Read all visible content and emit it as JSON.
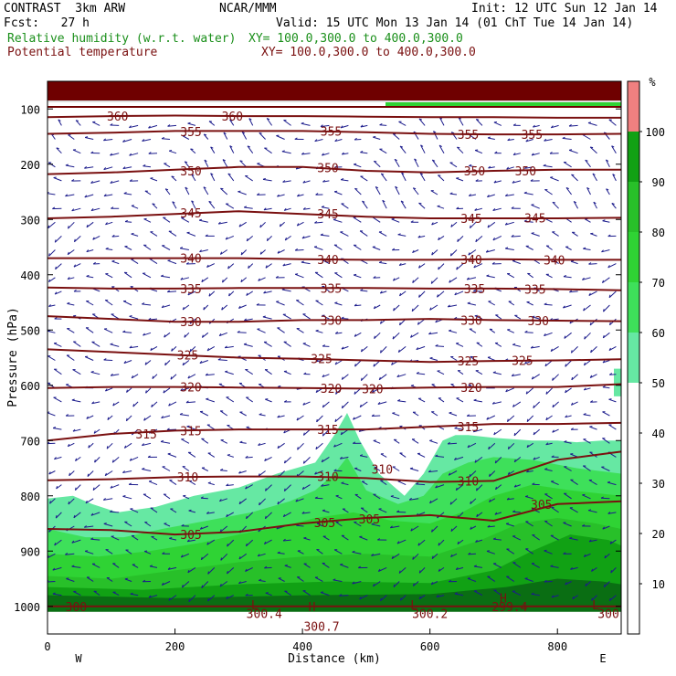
{
  "header": {
    "model": "CONTRAST  3km ARW",
    "org": "NCAR/MMM",
    "init": "Init: 12 UTC Sun 12 Jan 14",
    "fcst": "Fcst:   27 h",
    "valid": "Valid: 15 UTC Mon 13 Jan 14 (01 ChT Tue 14 Jan 14)",
    "field1": "Relative humidity (w.r.t. water)",
    "xy1": "XY= 100.0,300.0 to 400.0,300.0",
    "field2": "Potential temperature",
    "xy2": "XY= 100.0,300.0 to 400.0,300.0"
  },
  "colors": {
    "bg": "#ffffff",
    "rh_50": "#66e8a3",
    "rh_60": "#3ee05a",
    "rh_70": "#2fd334",
    "rh_80": "#28c029",
    "rh_90": "#11a114",
    "rh_100": "#0a6e13",
    "rh_over": "#f08080",
    "theta": "#7a1010",
    "wind": "#1c1c8c",
    "top_band": "#6f0000"
  },
  "chart_data": {
    "type": "heatmap",
    "title": "",
    "xlabel": "Distance (km)",
    "ylabel": "Pressure (hPa)",
    "xlim": [
      0,
      900
    ],
    "ylim": [
      1050,
      50
    ],
    "x_ticks": [
      "0",
      "200",
      "400",
      "600",
      "800"
    ],
    "x_tick_values": [
      0,
      200,
      400,
      600,
      800
    ],
    "y_ticks": [
      "100",
      "200",
      "300",
      "400",
      "500",
      "600",
      "700",
      "800",
      "900",
      "1000"
    ],
    "y_tick_values": [
      100,
      200,
      300,
      400,
      500,
      600,
      700,
      800,
      900,
      1000
    ],
    "x_end_labels": {
      "left": "W",
      "right": "E"
    },
    "colorbar": {
      "unit": "%",
      "tick_labels": [
        "10",
        "20",
        "30",
        "40",
        "50",
        "60",
        "70",
        "80",
        "90",
        "100"
      ],
      "bounds": [
        50,
        60,
        70,
        80,
        90,
        100
      ],
      "color_keys": [
        "rh_50",
        "rh_60",
        "rh_70",
        "rh_80",
        "rh_90",
        "rh_100"
      ]
    },
    "rh_regions": [
      {
        "level": "rh_50",
        "pts": [
          [
            0,
            805
          ],
          [
            40,
            800
          ],
          [
            70,
            815
          ],
          [
            110,
            830
          ],
          [
            170,
            820
          ],
          [
            230,
            800
          ],
          [
            300,
            785
          ],
          [
            360,
            760
          ],
          [
            420,
            740
          ],
          [
            450,
            690
          ],
          [
            470,
            650
          ],
          [
            490,
            700
          ],
          [
            520,
            760
          ],
          [
            560,
            800
          ],
          [
            590,
            760
          ],
          [
            620,
            700
          ],
          [
            640,
            690
          ],
          [
            660,
            690
          ],
          [
            700,
            695
          ],
          [
            760,
            700
          ],
          [
            800,
            700
          ],
          [
            830,
            703
          ],
          [
            870,
            700
          ],
          [
            900,
            700
          ],
          [
            900,
            990
          ],
          [
            0,
            990
          ]
        ]
      },
      {
        "level": "rh_60",
        "pts": [
          [
            0,
            860
          ],
          [
            60,
            875
          ],
          [
            120,
            875
          ],
          [
            180,
            860
          ],
          [
            250,
            845
          ],
          [
            320,
            830
          ],
          [
            380,
            810
          ],
          [
            420,
            790
          ],
          [
            450,
            760
          ],
          [
            470,
            730
          ],
          [
            500,
            790
          ],
          [
            550,
            815
          ],
          [
            590,
            800
          ],
          [
            620,
            760
          ],
          [
            660,
            740
          ],
          [
            700,
            730
          ],
          [
            760,
            735
          ],
          [
            830,
            750
          ],
          [
            900,
            760
          ],
          [
            900,
            990
          ],
          [
            0,
            990
          ]
        ]
      },
      {
        "level": "rh_70",
        "pts": [
          [
            0,
            905
          ],
          [
            80,
            910
          ],
          [
            160,
            900
          ],
          [
            240,
            885
          ],
          [
            300,
            870
          ],
          [
            360,
            858
          ],
          [
            420,
            840
          ],
          [
            480,
            830
          ],
          [
            540,
            845
          ],
          [
            600,
            850
          ],
          [
            650,
            830
          ],
          [
            700,
            800
          ],
          [
            760,
            780
          ],
          [
            820,
            790
          ],
          [
            900,
            800
          ],
          [
            900,
            990
          ],
          [
            0,
            990
          ]
        ]
      },
      {
        "level": "rh_80",
        "pts": [
          [
            0,
            945
          ],
          [
            100,
            950
          ],
          [
            200,
            935
          ],
          [
            300,
            920
          ],
          [
            400,
            910
          ],
          [
            500,
            905
          ],
          [
            600,
            910
          ],
          [
            680,
            880
          ],
          [
            740,
            850
          ],
          [
            800,
            840
          ],
          [
            860,
            850
          ],
          [
            900,
            860
          ],
          [
            900,
            990
          ],
          [
            0,
            990
          ]
        ]
      },
      {
        "level": "rh_90",
        "pts": [
          [
            0,
            965
          ],
          [
            150,
            970
          ],
          [
            300,
            960
          ],
          [
            450,
            955
          ],
          [
            600,
            958
          ],
          [
            700,
            935
          ],
          [
            760,
            900
          ],
          [
            820,
            870
          ],
          [
            880,
            880
          ],
          [
            900,
            890
          ],
          [
            900,
            990
          ],
          [
            0,
            990
          ]
        ]
      },
      {
        "level": "rh_100",
        "pts": [
          [
            0,
            980
          ],
          [
            200,
            985
          ],
          [
            400,
            980
          ],
          [
            600,
            978
          ],
          [
            720,
            965
          ],
          [
            800,
            950
          ],
          [
            870,
            955
          ],
          [
            900,
            960
          ],
          [
            900,
            1010
          ],
          [
            0,
            1010
          ]
        ]
      }
    ],
    "theta_lines": [
      {
        "label": "300",
        "values": [
          1000,
          1000,
          1000,
          1000,
          1000,
          1000,
          1000,
          1000,
          1000,
          1000
        ]
      },
      {
        "label": "305",
        "values": [
          860,
          862,
          870,
          865,
          850,
          840,
          835,
          845,
          815,
          810
        ]
      },
      {
        "label": "310",
        "values": [
          772,
          770,
          766,
          765,
          765,
          768,
          775,
          773,
          735,
          720
        ]
      },
      {
        "label": "315",
        "values": [
          700,
          688,
          682,
          680,
          680,
          680,
          675,
          670,
          670,
          668
        ]
      },
      {
        "label": "320",
        "values": [
          605,
          603,
          603,
          604,
          605,
          606,
          604,
          603,
          603,
          598
        ]
      },
      {
        "label": "325",
        "values": [
          535,
          540,
          545,
          550,
          552,
          555,
          558,
          556,
          555,
          553
        ]
      },
      {
        "label": "330",
        "values": [
          475,
          480,
          485,
          485,
          482,
          482,
          480,
          482,
          483,
          484
        ]
      },
      {
        "label": "335",
        "values": [
          423,
          425,
          425,
          424,
          424,
          424,
          425,
          425,
          426,
          428
        ]
      },
      {
        "label": "340",
        "values": [
          370,
          370,
          370,
          370,
          372,
          373,
          373,
          372,
          373,
          373
        ]
      },
      {
        "label": "345",
        "values": [
          298,
          295,
          290,
          285,
          290,
          295,
          298,
          298,
          298,
          297
        ]
      },
      {
        "label": "350",
        "values": [
          218,
          215,
          210,
          205,
          205,
          212,
          215,
          212,
          210,
          210
        ]
      },
      {
        "label": "355",
        "values": [
          145,
          143,
          140,
          140,
          140,
          142,
          145,
          146,
          146,
          145
        ]
      },
      {
        "label": "360",
        "values": [
          115,
          113,
          112,
          113,
          113,
          114,
          115,
          115,
          116,
          116
        ]
      }
    ],
    "theta_x": [
      0,
      100,
      200,
      300,
      400,
      500,
      600,
      700,
      800,
      900
    ],
    "theta_labels": [
      {
        "text": "360",
        "x": 110,
        "p": 113
      },
      {
        "text": "360",
        "x": 290,
        "p": 113
      },
      {
        "text": "355",
        "x": 225,
        "p": 141
      },
      {
        "text": "355",
        "x": 445,
        "p": 140
      },
      {
        "text": "355",
        "x": 660,
        "p": 146
      },
      {
        "text": "355",
        "x": 760,
        "p": 146
      },
      {
        "text": "350",
        "x": 225,
        "p": 212
      },
      {
        "text": "350",
        "x": 440,
        "p": 206
      },
      {
        "text": "350",
        "x": 670,
        "p": 212
      },
      {
        "text": "350",
        "x": 750,
        "p": 212
      },
      {
        "text": "345",
        "x": 225,
        "p": 288
      },
      {
        "text": "345",
        "x": 440,
        "p": 290
      },
      {
        "text": "345",
        "x": 665,
        "p": 298
      },
      {
        "text": "345",
        "x": 765,
        "p": 297
      },
      {
        "text": "340",
        "x": 225,
        "p": 370
      },
      {
        "text": "340",
        "x": 440,
        "p": 372
      },
      {
        "text": "340",
        "x": 665,
        "p": 372
      },
      {
        "text": "340",
        "x": 795,
        "p": 373
      },
      {
        "text": "335",
        "x": 225,
        "p": 425
      },
      {
        "text": "335",
        "x": 445,
        "p": 424
      },
      {
        "text": "335",
        "x": 670,
        "p": 425
      },
      {
        "text": "335",
        "x": 765,
        "p": 426
      },
      {
        "text": "330",
        "x": 225,
        "p": 485
      },
      {
        "text": "330",
        "x": 445,
        "p": 482
      },
      {
        "text": "330",
        "x": 665,
        "p": 482
      },
      {
        "text": "330",
        "x": 770,
        "p": 483
      },
      {
        "text": "325",
        "x": 220,
        "p": 545
      },
      {
        "text": "325",
        "x": 430,
        "p": 552
      },
      {
        "text": "325",
        "x": 660,
        "p": 556
      },
      {
        "text": "325",
        "x": 745,
        "p": 555
      },
      {
        "text": "320",
        "x": 225,
        "p": 603
      },
      {
        "text": "320",
        "x": 445,
        "p": 605
      },
      {
        "text": "320",
        "x": 510,
        "p": 606
      },
      {
        "text": "320",
        "x": 665,
        "p": 604
      },
      {
        "text": "315",
        "x": 155,
        "p": 688
      },
      {
        "text": "315",
        "x": 225,
        "p": 682
      },
      {
        "text": "315",
        "x": 440,
        "p": 680
      },
      {
        "text": "315",
        "x": 660,
        "p": 675
      },
      {
        "text": "310",
        "x": 220,
        "p": 766
      },
      {
        "text": "310",
        "x": 440,
        "p": 765
      },
      {
        "text": "310",
        "x": 525,
        "p": 752
      },
      {
        "text": "310",
        "x": 660,
        "p": 773
      },
      {
        "text": "305",
        "x": 225,
        "p": 870
      },
      {
        "text": "305",
        "x": 435,
        "p": 848
      },
      {
        "text": "305",
        "x": 505,
        "p": 842
      },
      {
        "text": "305",
        "x": 775,
        "p": 815
      },
      {
        "text": "300",
        "x": 45,
        "p": 1000
      },
      {
        "text": "300.4",
        "x": 340,
        "p": 1013
      },
      {
        "text": "300.7",
        "x": 430,
        "p": 1036
      },
      {
        "text": "300.2",
        "x": 600,
        "p": 1013
      },
      {
        "text": "299.4",
        "x": 725,
        "p": 1000
      },
      {
        "text": "300",
        "x": 880,
        "p": 1013
      }
    ],
    "extrema_marks": [
      {
        "text": "L",
        "x": 325,
        "p": 997
      },
      {
        "text": "H",
        "x": 415,
        "p": 1000
      },
      {
        "text": "L",
        "x": 575,
        "p": 997
      },
      {
        "text": "H",
        "x": 715,
        "p": 985
      },
      {
        "text": "L",
        "x": 860,
        "p": 997
      }
    ]
  }
}
